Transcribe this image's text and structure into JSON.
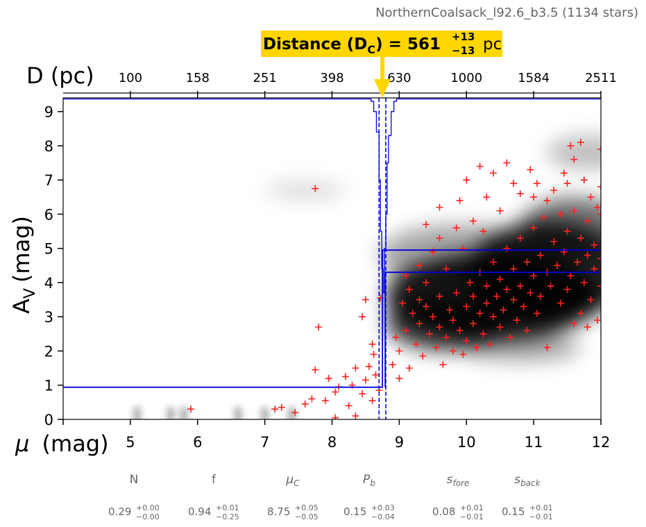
{
  "chart_data": {
    "type": "scatter",
    "title": "NorthernCoalsack_l92.6_b3.5 (1134 stars)",
    "xlabel_prefix": "μ",
    "xlabel_unit": "(mag)",
    "ylabel_main": "A",
    "ylabel_sub": "V",
    "ylabel_unit": "(mag)",
    "top_axis_label": "D (pc)",
    "xlim": [
      4,
      12
    ],
    "ylim": [
      0,
      9.4
    ],
    "x_ticks": [
      4,
      5,
      6,
      7,
      8,
      9,
      10,
      11,
      12
    ],
    "x_tick_labels": [
      "5",
      "6",
      "7",
      "8",
      "9",
      "10",
      "11",
      "12"
    ],
    "y_ticks": [
      0,
      1,
      2,
      3,
      4,
      5,
      6,
      7,
      8,
      9
    ],
    "y_tick_labels": [
      "0",
      "1",
      "2",
      "3",
      "4",
      "5",
      "6",
      "7",
      "8",
      "9"
    ],
    "top_ticks_mu": [
      5,
      6,
      7,
      8,
      9,
      10,
      11,
      12
    ],
    "top_tick_labels": [
      "100",
      "158",
      "251",
      "398",
      "630",
      "1000",
      "1584",
      "2511"
    ],
    "distance_annotation": {
      "prefix": "Distance (D",
      "sub": "C",
      "suffix": ") = 561",
      "plus": "+13",
      "minus": "−13",
      "unit": "pc",
      "mu": 8.75
    },
    "extinction_model": {
      "foreground_av": 0.94,
      "step_mu": 8.75,
      "background_av_upper": 4.95,
      "background_av_lower": 4.3,
      "dashed_mu": [
        8.7,
        8.8
      ]
    },
    "posterior_histogram": {
      "baseline_av": 9.37,
      "profile": [
        [
          8.5,
          9.37
        ],
        [
          8.58,
          9.3
        ],
        [
          8.62,
          9.0
        ],
        [
          8.66,
          8.4
        ],
        [
          8.7,
          7.0
        ],
        [
          8.72,
          5.5
        ],
        [
          8.74,
          4.4
        ],
        [
          8.76,
          3.7
        ],
        [
          8.78,
          5.0
        ],
        [
          8.8,
          6.0
        ],
        [
          8.82,
          7.5
        ],
        [
          8.84,
          8.3
        ],
        [
          8.88,
          9.0
        ],
        [
          8.92,
          9.3
        ],
        [
          8.96,
          9.37
        ]
      ]
    },
    "star_colors": {
      "points": "#ff2020",
      "model": "#0000dd",
      "badge": "#ffd600"
    },
    "stars": [
      [
        5.9,
        0.3
      ],
      [
        7.15,
        0.3
      ],
      [
        7.25,
        0.35
      ],
      [
        7.45,
        0.2
      ],
      [
        7.6,
        0.45
      ],
      [
        7.7,
        0.6
      ],
      [
        7.75,
        1.45
      ],
      [
        7.9,
        0.55
      ],
      [
        7.95,
        1.2
      ],
      [
        8.05,
        0.8
      ],
      [
        8.1,
        0.95
      ],
      [
        8.2,
        1.25
      ],
      [
        8.25,
        0.4
      ],
      [
        8.3,
        1.0
      ],
      [
        8.35,
        1.5
      ],
      [
        8.45,
        0.75
      ],
      [
        8.5,
        1.15
      ],
      [
        8.55,
        1.55
      ],
      [
        8.6,
        0.55
      ],
      [
        8.62,
        1.9
      ],
      [
        8.65,
        1.3
      ],
      [
        8.7,
        0.85
      ],
      [
        8.72,
        3.55
      ],
      [
        8.5,
        3.5
      ],
      [
        8.45,
        3.0
      ],
      [
        8.6,
        2.2
      ],
      [
        7.8,
        2.7
      ],
      [
        7.75,
        6.75
      ],
      [
        8.05,
        0.05
      ],
      [
        8.35,
        0.1
      ],
      [
        9.0,
        2.0
      ],
      [
        9.1,
        2.6
      ],
      [
        9.2,
        3.1
      ],
      [
        9.25,
        2.2
      ],
      [
        9.3,
        2.8
      ],
      [
        9.35,
        1.85
      ],
      [
        9.4,
        3.3
      ],
      [
        9.45,
        2.5
      ],
      [
        9.5,
        3.0
      ],
      [
        9.55,
        2.1
      ],
      [
        9.6,
        3.6
      ],
      [
        9.6,
        2.7
      ],
      [
        9.65,
        1.6
      ],
      [
        9.7,
        2.4
      ],
      [
        9.75,
        3.2
      ],
      [
        9.8,
        2.0
      ],
      [
        9.8,
        2.9
      ],
      [
        9.85,
        3.7
      ],
      [
        9.9,
        2.6
      ],
      [
        9.95,
        1.9
      ],
      [
        10.0,
        3.3
      ],
      [
        10.0,
        2.3
      ],
      [
        10.05,
        4.0
      ],
      [
        10.1,
        2.8
      ],
      [
        10.1,
        3.6
      ],
      [
        10.15,
        2.1
      ],
      [
        10.2,
        3.1
      ],
      [
        10.2,
        4.3
      ],
      [
        10.25,
        2.5
      ],
      [
        10.3,
        3.4
      ],
      [
        10.3,
        3.9
      ],
      [
        10.35,
        2.2
      ],
      [
        10.4,
        3.0
      ],
      [
        10.4,
        4.6
      ],
      [
        10.45,
        3.6
      ],
      [
        10.5,
        2.7
      ],
      [
        10.5,
        4.1
      ],
      [
        10.55,
        3.2
      ],
      [
        10.6,
        5.0
      ],
      [
        10.6,
        3.8
      ],
      [
        10.65,
        2.4
      ],
      [
        10.7,
        3.5
      ],
      [
        10.7,
        4.4
      ],
      [
        10.75,
        2.9
      ],
      [
        10.8,
        3.9
      ],
      [
        10.8,
        5.3
      ],
      [
        10.85,
        3.3
      ],
      [
        10.9,
        4.6
      ],
      [
        10.9,
        2.6
      ],
      [
        10.95,
        3.7
      ],
      [
        11.0,
        4.2
      ],
      [
        11.0,
        5.6
      ],
      [
        11.05,
        3.1
      ],
      [
        11.1,
        4.8
      ],
      [
        11.1,
        3.6
      ],
      [
        11.15,
        5.9
      ],
      [
        11.2,
        4.3
      ],
      [
        11.2,
        2.1
      ],
      [
        11.25,
        3.9
      ],
      [
        11.3,
        5.2
      ],
      [
        11.35,
        4.5
      ],
      [
        11.4,
        6.0
      ],
      [
        11.4,
        3.4
      ],
      [
        11.45,
        4.9
      ],
      [
        11.5,
        5.5
      ],
      [
        11.5,
        3.8
      ],
      [
        11.55,
        4.2
      ],
      [
        11.6,
        6.1
      ],
      [
        11.65,
        4.6
      ],
      [
        11.7,
        5.3
      ],
      [
        11.7,
        3.1
      ],
      [
        11.75,
        4.0
      ],
      [
        11.8,
        5.8
      ],
      [
        11.8,
        4.8
      ],
      [
        11.85,
        3.5
      ],
      [
        11.9,
        5.1
      ],
      [
        11.9,
        4.4
      ],
      [
        11.95,
        6.2
      ],
      [
        12.0,
        4.7
      ],
      [
        12.0,
        3.9
      ],
      [
        11.6,
        7.6
      ],
      [
        11.7,
        8.1
      ],
      [
        11.55,
        8.0
      ],
      [
        12.0,
        7.9
      ],
      [
        12.0,
        6.8
      ],
      [
        11.95,
        2.9
      ],
      [
        11.8,
        2.7
      ],
      [
        11.6,
        2.8
      ],
      [
        10.2,
        7.4
      ],
      [
        10.6,
        7.5
      ],
      [
        10.0,
        7.0
      ],
      [
        10.4,
        7.2
      ],
      [
        10.7,
        6.9
      ],
      [
        9.6,
        6.2
      ],
      [
        9.9,
        6.4
      ],
      [
        10.3,
        6.5
      ],
      [
        10.8,
        6.6
      ],
      [
        11.0,
        6.5
      ],
      [
        9.4,
        5.7
      ],
      [
        9.6,
        5.3
      ],
      [
        9.85,
        5.6
      ],
      [
        10.1,
        5.8
      ],
      [
        10.5,
        6.1
      ],
      [
        9.3,
        4.5
      ],
      [
        9.5,
        4.9
      ],
      [
        9.7,
        4.4
      ],
      [
        9.95,
        5.0
      ],
      [
        10.25,
        5.5
      ],
      [
        9.15,
        3.8
      ],
      [
        9.3,
        3.5
      ],
      [
        9.1,
        4.2
      ],
      [
        9.4,
        4.0
      ],
      [
        8.95,
        2.4
      ],
      [
        9.05,
        3.4
      ],
      [
        8.9,
        1.6
      ],
      [
        9.0,
        1.2
      ],
      [
        9.15,
        1.5
      ],
      [
        11.2,
        6.4
      ],
      [
        11.3,
        6.7
      ],
      [
        11.5,
        6.9
      ],
      [
        11.05,
        6.9
      ],
      [
        10.95,
        7.3
      ],
      [
        11.45,
        7.2
      ],
      [
        11.75,
        7.0
      ],
      [
        11.85,
        6.5
      ],
      [
        12.0,
        6.0
      ]
    ],
    "parameters": [
      {
        "name": "N",
        "value": "0.29",
        "plus": "+0.00",
        "minus": "−0.00",
        "italic": false
      },
      {
        "name": "f",
        "value": "0.94",
        "plus": "+0.01",
        "minus": "−0.25",
        "italic": false
      },
      {
        "name": "μ",
        "sub": "C",
        "value": "8.75",
        "plus": "+0.05",
        "minus": "−0.05",
        "italic": true
      },
      {
        "name": "P",
        "sub": "b",
        "value": "0.15",
        "plus": "+0.03",
        "minus": "−0.04",
        "italic": true
      },
      {
        "name": "s",
        "sub": "fore",
        "value": "0.08",
        "plus": "+0.01",
        "minus": "−0.01",
        "italic": true
      },
      {
        "name": "s",
        "sub": "back",
        "value": "0.15",
        "plus": "+0.01",
        "minus": "−0.01",
        "italic": true
      }
    ]
  }
}
